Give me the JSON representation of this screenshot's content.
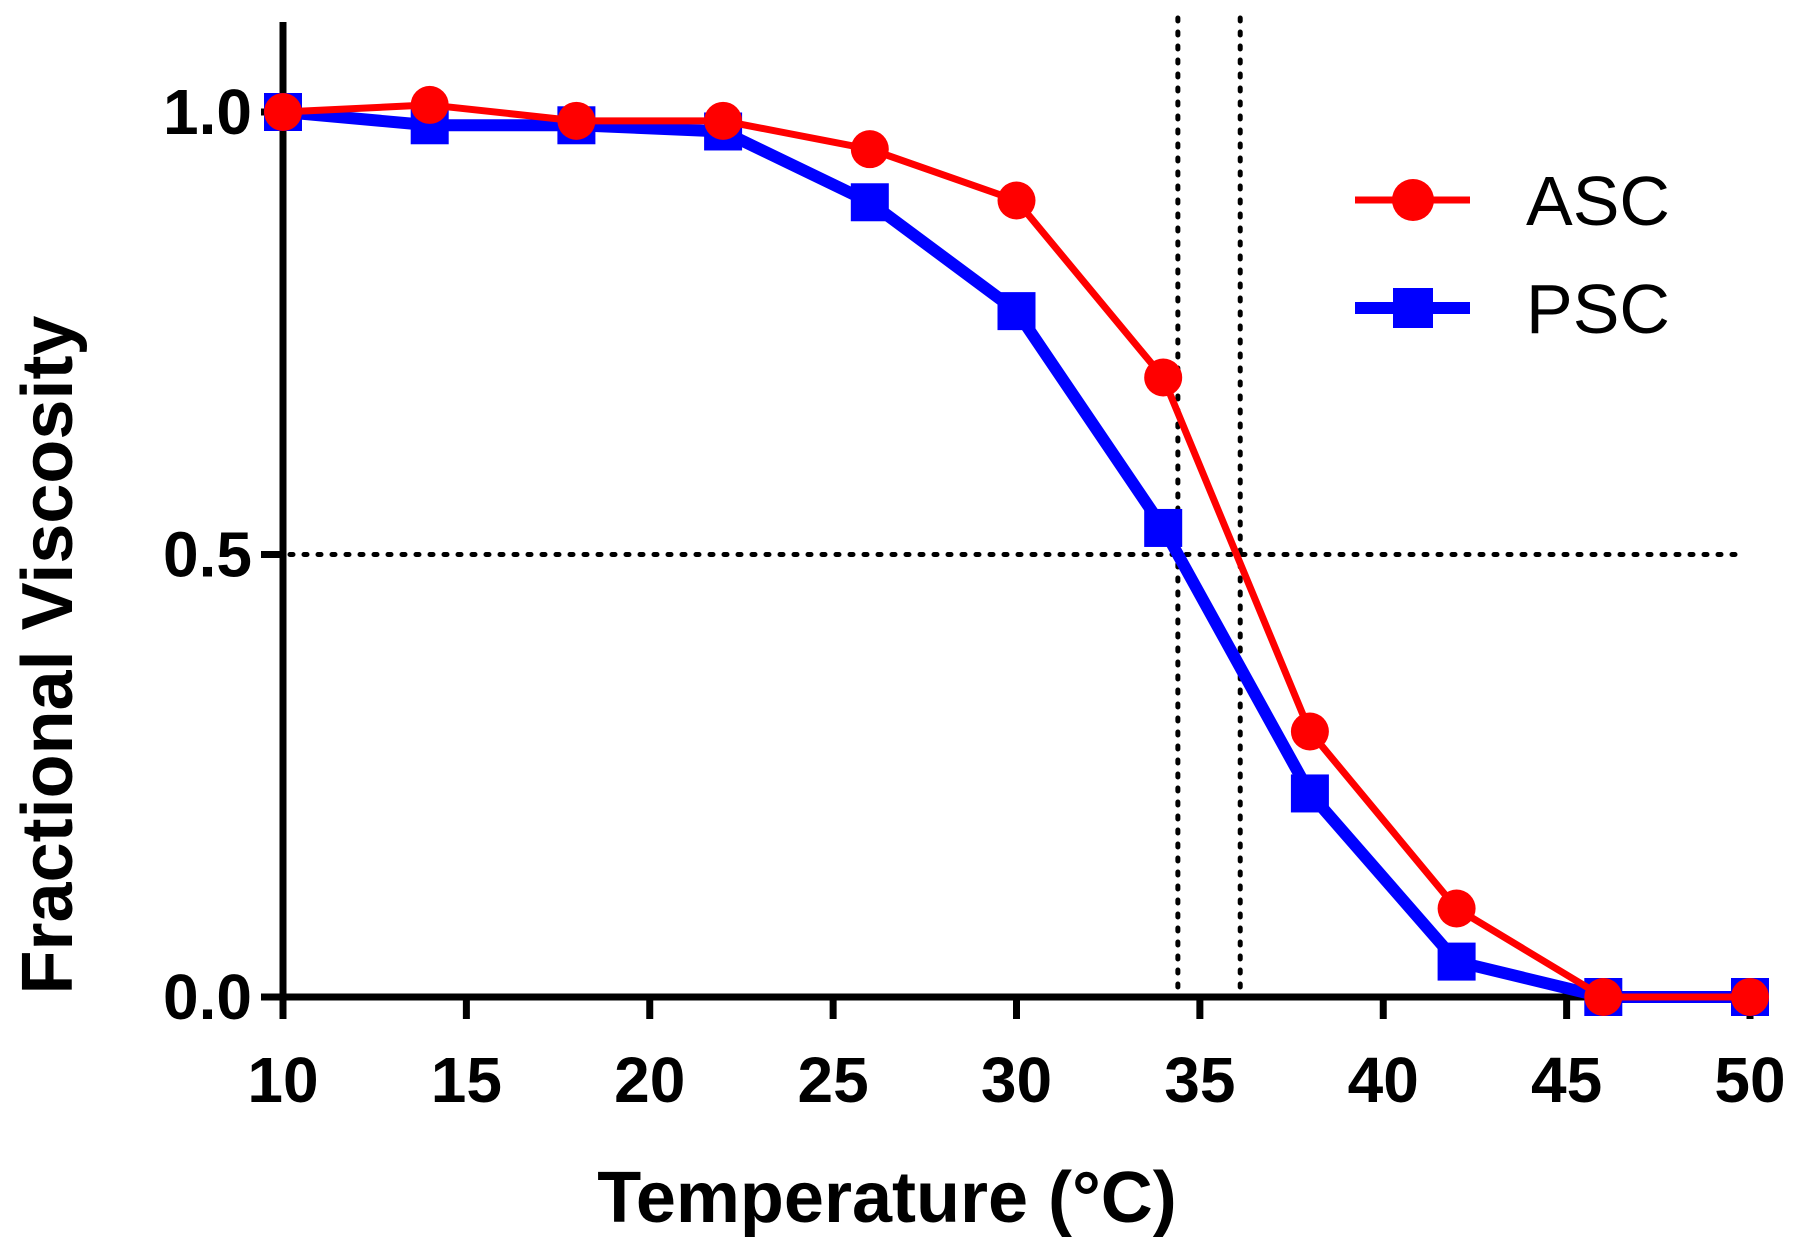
{
  "chart_data": {
    "type": "line",
    "title": "",
    "xlabel": "Temperature (°C)",
    "ylabel": "Fractional Viscosity",
    "xlim": [
      10,
      50
    ],
    "ylim": [
      0,
      1.1
    ],
    "xticks": [
      10,
      15,
      20,
      25,
      30,
      35,
      40,
      45,
      50
    ],
    "xtick_labels": [
      "10",
      "15",
      "20",
      "25",
      "30",
      "35",
      "40",
      "45",
      "50"
    ],
    "yticks": [
      0,
      0.5,
      1.0
    ],
    "ytick_labels": [
      "0.0",
      "0.5",
      "1.0"
    ],
    "legend_position": "top-right",
    "reference_lines": {
      "horizontal": [
        0.5
      ],
      "vertical": [
        34.4,
        36.1
      ],
      "style": "dotted"
    },
    "series": [
      {
        "name": "ASC",
        "color": "#ff0000",
        "marker": "circle",
        "x": [
          10,
          14,
          18,
          22,
          26,
          30,
          34,
          38,
          42,
          46,
          50
        ],
        "y": [
          1.0,
          1.008,
          0.99,
          0.99,
          0.958,
          0.9,
          0.7,
          0.3,
          0.1,
          0.0,
          0.0
        ]
      },
      {
        "name": "PSC",
        "color": "#0000ff",
        "marker": "square",
        "x": [
          10,
          14,
          18,
          22,
          26,
          30,
          34,
          38,
          42,
          46,
          50
        ],
        "y": [
          1.0,
          0.985,
          0.985,
          0.978,
          0.898,
          0.775,
          0.53,
          0.23,
          0.04,
          0.0,
          0.0
        ]
      }
    ]
  }
}
